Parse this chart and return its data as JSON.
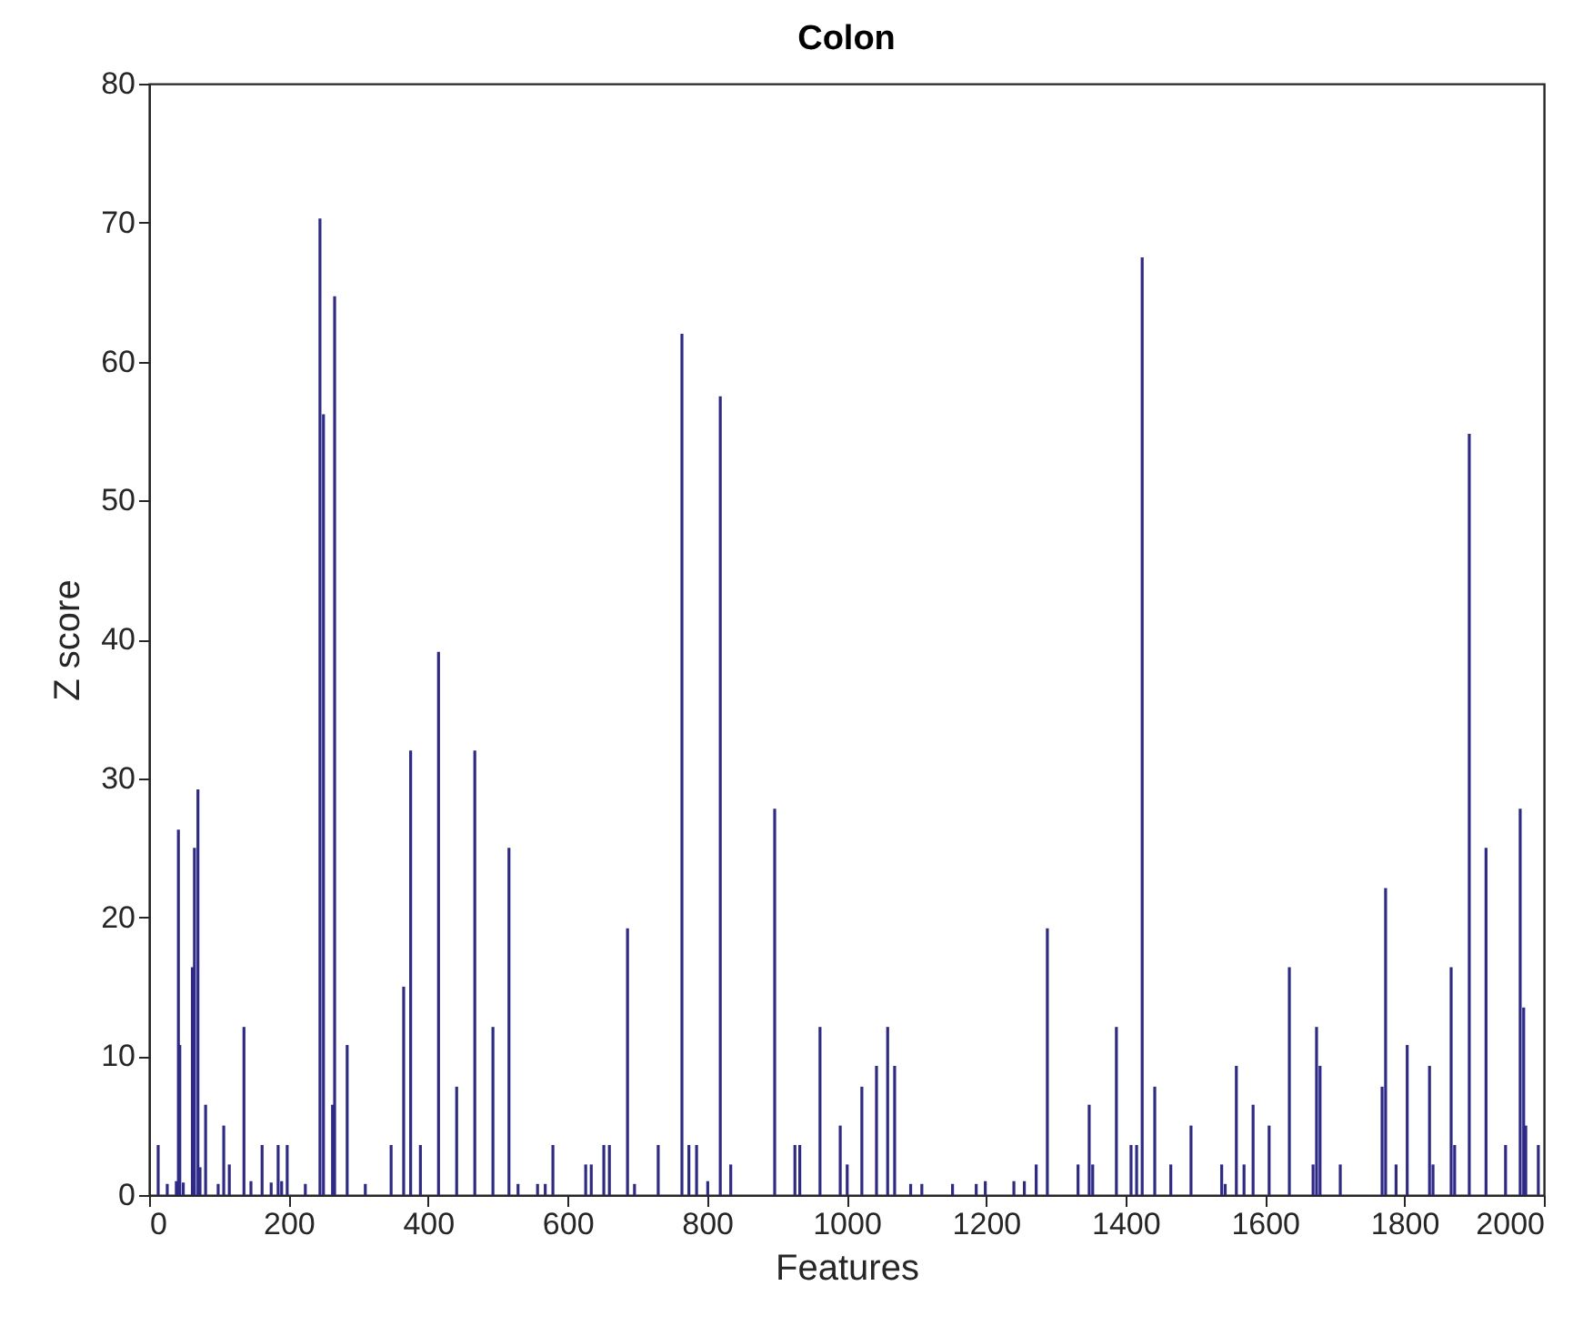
{
  "chart_data": {
    "type": "bar",
    "title": "Colon",
    "xlabel": "Features",
    "ylabel": "Z score",
    "x": [
      13,
      26,
      39,
      42,
      44,
      49,
      62,
      65,
      70,
      73,
      81,
      99,
      107,
      115,
      136,
      146,
      162,
      175,
      185,
      190,
      198,
      224,
      245,
      250,
      263,
      266,
      284,
      310,
      347,
      365,
      375,
      389,
      415,
      441,
      467,
      493,
      516,
      529,
      557,
      568,
      579,
      626,
      634,
      652,
      660,
      686,
      696,
      730,
      764,
      774,
      785,
      801,
      819,
      834,
      897,
      926,
      933,
      962,
      991,
      1001,
      1022,
      1043,
      1059,
      1069,
      1092,
      1108,
      1152,
      1186,
      1199,
      1240,
      1255,
      1272,
      1288,
      1332,
      1348,
      1353,
      1387,
      1408,
      1416,
      1424,
      1442,
      1465,
      1494,
      1538,
      1543,
      1559,
      1570,
      1583,
      1606,
      1635,
      1669,
      1674,
      1679,
      1708,
      1768,
      1773,
      1788,
      1804,
      1836,
      1841,
      1867,
      1872,
      1893,
      1917,
      1945,
      1966,
      1971,
      1974,
      1992
    ],
    "values": [
      3.6,
      0.8,
      1,
      26.3,
      10.8,
      0.9,
      16.4,
      25,
      29.2,
      2,
      6.5,
      0.8,
      5,
      2.2,
      12.1,
      1,
      3.6,
      0.9,
      3.6,
      1,
      3.6,
      0.8,
      70.3,
      56.2,
      6.5,
      64.7,
      10.8,
      0.8,
      3.6,
      15,
      32,
      3.6,
      39.1,
      7.8,
      32,
      12.1,
      25,
      0.8,
      0.8,
      0.8,
      3.6,
      2.2,
      2.2,
      3.6,
      3.6,
      19.2,
      0.8,
      3.6,
      62,
      3.6,
      3.6,
      1,
      57.5,
      2.2,
      27.8,
      3.6,
      3.6,
      12.1,
      5,
      2.2,
      7.8,
      9.3,
      12.1,
      9.3,
      0.8,
      0.8,
      0.8,
      0.8,
      1,
      1,
      1,
      2.2,
      19.2,
      2.2,
      6.5,
      2.2,
      12.1,
      3.6,
      3.6,
      67.5,
      7.8,
      2.2,
      5,
      2.2,
      0.8,
      9.3,
      2.2,
      6.5,
      5,
      16.4,
      2.2,
      12.1,
      9.3,
      2.2,
      7.8,
      22.1,
      2.2,
      10.8,
      9.3,
      2.2,
      16.4,
      3.6,
      54.8,
      25,
      3.6,
      27.8,
      13.5,
      5,
      3.6
    ],
    "color": "#2e2a8a",
    "xlim": [
      0,
      2000
    ],
    "xticks": [
      0,
      200,
      400,
      600,
      800,
      1000,
      1200,
      1400,
      1600,
      1800,
      2000
    ],
    "ylim": [
      0,
      80
    ],
    "yticks": [
      0,
      10,
      20,
      30,
      40,
      50,
      60,
      70,
      80
    ],
    "grid": false,
    "legend": false
  }
}
